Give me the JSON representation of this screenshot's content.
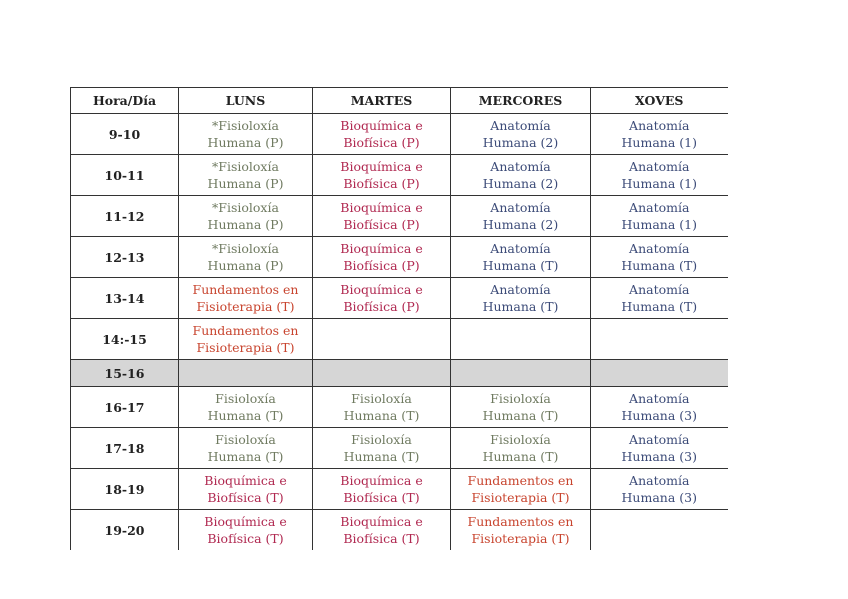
{
  "timetable": {
    "headers": [
      "Hora/Día",
      "LUNS",
      "MARTES",
      "MERCORES",
      "XOVES"
    ],
    "colors": {
      "fisioloxia": "#6f7a60",
      "bioquimica": "#b02850",
      "fundamentos": "#c8442e",
      "anatomia": "#3c4b78",
      "break_row": "#d6d6d6"
    },
    "rows": [
      {
        "hour": "9-10",
        "cells": [
          [
            "*Fisioloxía",
            "Humana (P)"
          ],
          [
            "Bioquímica e",
            "Biofísica (P)"
          ],
          [
            "Anatomía",
            "Humana (2)"
          ],
          [
            "Anatomía",
            "Humana (1)"
          ]
        ]
      },
      {
        "hour": "10-11",
        "cells": [
          [
            "*Fisioloxía",
            "Humana (P)"
          ],
          [
            "Bioquímica e",
            "Biofísica (P)"
          ],
          [
            "Anatomía",
            "Humana (2)"
          ],
          [
            "Anatomía",
            "Humana (1)"
          ]
        ]
      },
      {
        "hour": "11-12",
        "cells": [
          [
            "*Fisioloxía",
            "Humana (P)"
          ],
          [
            "Bioquímica e",
            "Biofísica (P)"
          ],
          [
            "Anatomía",
            "Humana (2)"
          ],
          [
            "Anatomía",
            "Humana (1)"
          ]
        ]
      },
      {
        "hour": "12-13",
        "cells": [
          [
            "*Fisioloxía",
            "Humana (P)"
          ],
          [
            "Bioquímica e",
            "Biofísica (P)"
          ],
          [
            "Anatomía",
            "Humana (T)"
          ],
          [
            "Anatomía",
            "Humana (T)"
          ]
        ]
      },
      {
        "hour": "13-14",
        "cells": [
          [
            "Fundamentos en",
            "Fisioterapia (T)"
          ],
          [
            "Bioquímica e",
            "Biofísica (P)"
          ],
          [
            "Anatomía",
            "Humana (T)"
          ],
          [
            "Anatomía",
            "Humana (T)"
          ]
        ]
      },
      {
        "hour": "14:-15",
        "cells": [
          [
            "Fundamentos en",
            "Fisioterapia (T)"
          ],
          [
            "",
            ""
          ],
          [
            "",
            ""
          ],
          [
            "",
            ""
          ]
        ]
      },
      {
        "hour": "15-16",
        "cells": [
          [
            "",
            ""
          ],
          [
            "",
            ""
          ],
          [
            "",
            ""
          ],
          [
            "",
            ""
          ]
        ]
      },
      {
        "hour": "16-17",
        "cells": [
          [
            "Fisioloxía",
            "Humana (T)"
          ],
          [
            "Fisioloxía",
            "Humana (T)"
          ],
          [
            "Fisioloxía",
            "Humana (T)"
          ],
          [
            "Anatomía",
            "Humana (3)"
          ]
        ]
      },
      {
        "hour": "17-18",
        "cells": [
          [
            "Fisioloxía",
            "Humana (T)"
          ],
          [
            "Fisioloxía",
            "Humana (T)"
          ],
          [
            "Fisioloxía",
            "Humana (T)"
          ],
          [
            "Anatomía",
            "Humana (3)"
          ]
        ]
      },
      {
        "hour": "18-19",
        "cells": [
          [
            "Bioquímica e",
            "Biofísica (T)"
          ],
          [
            "Bioquímica e",
            "Biofísica (T)"
          ],
          [
            "Fundamentos en",
            "Fisioterapia (T)"
          ],
          [
            "Anatomía",
            "Humana (3)"
          ]
        ]
      },
      {
        "hour": "19-20",
        "cells": [
          [
            "Bioquímica e",
            "Biofísica (T)"
          ],
          [
            "Bioquímica e",
            "Biofísica (T)"
          ],
          [
            "Fundamentos en",
            "Fisioterapia (T)"
          ],
          [
            "",
            ""
          ]
        ]
      }
    ]
  }
}
